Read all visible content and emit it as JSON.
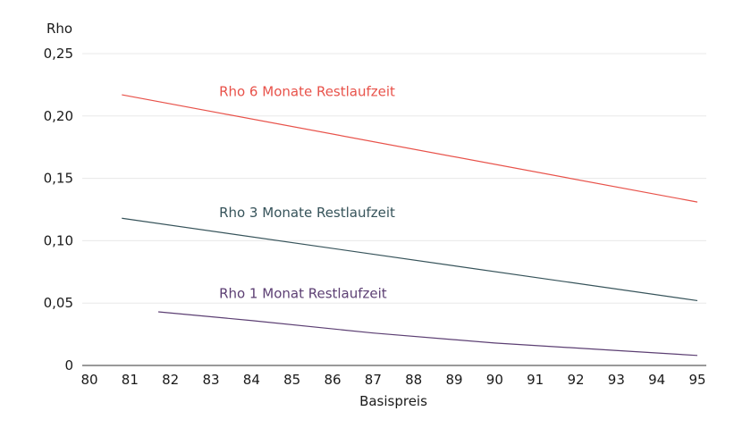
{
  "chart_data": {
    "type": "line",
    "title": "",
    "xlabel": "Basispreis",
    "ylabel": "Rho",
    "xlim": [
      80,
      95
    ],
    "ylim": [
      0,
      0.25
    ],
    "x_ticks": [
      "80",
      "81",
      "82",
      "83",
      "84",
      "85",
      "86",
      "87",
      "88",
      "89",
      "90",
      "91",
      "92",
      "93",
      "94",
      "95"
    ],
    "y_ticks": [
      "0",
      "0,05",
      "0,10",
      "0,15",
      "0,20",
      "0,25"
    ],
    "grid": "horizontal",
    "legend": "inline labels",
    "series": [
      {
        "name": "Rho 6 Monate Restlaufzeit",
        "color": "#e8524a",
        "label_at": [
          83.2,
          0.216
        ],
        "points": [
          [
            80.8,
            0.217
          ],
          [
            95.0,
            0.131
          ]
        ]
      },
      {
        "name": "Rho 3 Monate Restlaufzeit",
        "color": "#36535a",
        "label_at": [
          83.2,
          0.119
        ],
        "points": [
          [
            80.8,
            0.118
          ],
          [
            95.0,
            0.052
          ]
        ]
      },
      {
        "name": "Rho 1 Monat Restlaufzeit",
        "color": "#5c3f73",
        "label_at": [
          83.2,
          0.054
        ],
        "points": [
          [
            81.7,
            0.043
          ],
          [
            84.0,
            0.036
          ],
          [
            87.0,
            0.026
          ],
          [
            90.0,
            0.018
          ],
          [
            93.0,
            0.012
          ],
          [
            95.0,
            0.008
          ]
        ]
      }
    ]
  }
}
